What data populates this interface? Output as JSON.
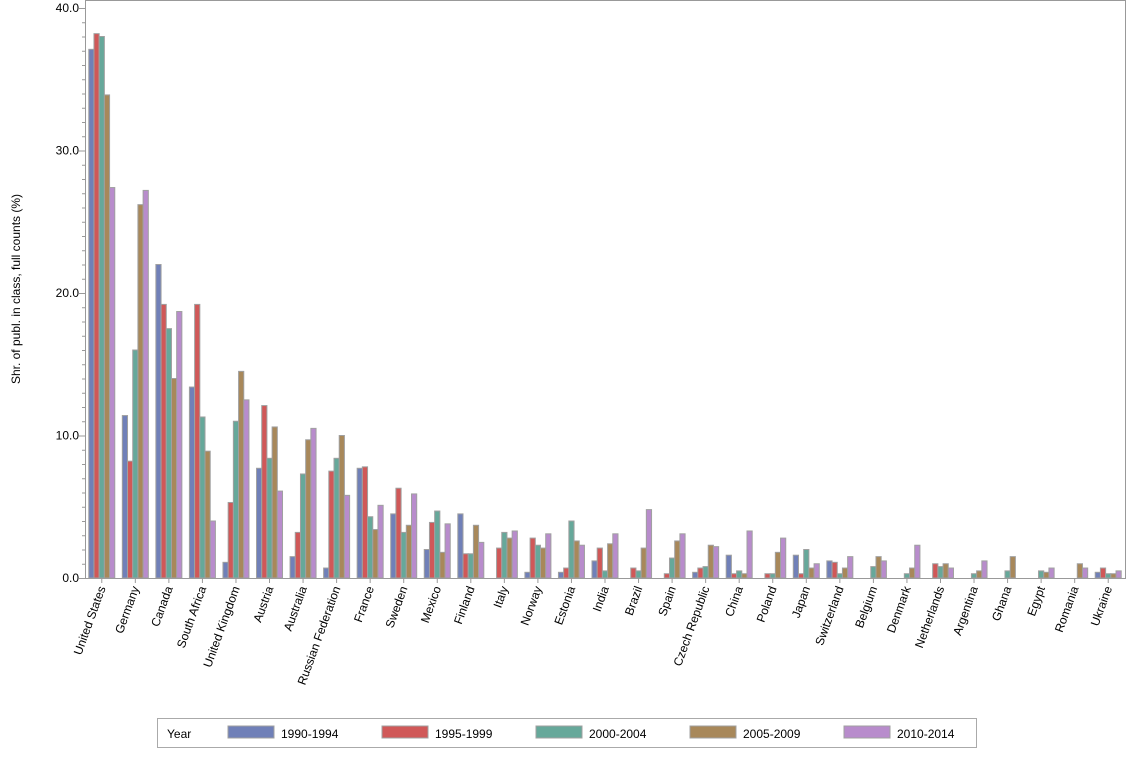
{
  "chart_data": {
    "type": "bar",
    "title": "",
    "xlabel": "",
    "ylabel": "Shr. of publ. in class, full counts (%)",
    "ylim": [
      0,
      40
    ],
    "yticks": [
      "0.0",
      "10.0",
      "20.0",
      "30.0",
      "40.0"
    ],
    "legend_title": "Year",
    "legend_position": "bottom",
    "categories": [
      "United States",
      "Germany",
      "Canada",
      "South Africa",
      "United Kingdom",
      "Austria",
      "Australia",
      "Russian Federation",
      "France",
      "Sweden",
      "Mexico",
      "Finland",
      "Italy",
      "Norway",
      "Estonia",
      "India",
      "Brazil",
      "Spain",
      "Czech Republic",
      "China",
      "Poland",
      "Japan",
      "Switzerland",
      "Belgium",
      "Denmark",
      "Netherlands",
      "Argentina",
      "Ghana",
      "Egypt",
      "Romania",
      "Ukraine"
    ],
    "series": [
      {
        "name": "1990-1994",
        "color": "#7080b8",
        "values": [
          37.1,
          11.4,
          22.0,
          13.4,
          1.1,
          7.7,
          1.5,
          0.7,
          7.7,
          4.5,
          2.0,
          4.5,
          0,
          0.4,
          0.4,
          1.2,
          0,
          0,
          0.4,
          1.6,
          0,
          1.6,
          1.2,
          0,
          0,
          0,
          0,
          0,
          0,
          0,
          0.4
        ]
      },
      {
        "name": "1995-1999",
        "color": "#d05858",
        "values": [
          38.2,
          8.2,
          19.2,
          19.2,
          5.3,
          12.1,
          3.2,
          7.5,
          7.8,
          6.3,
          3.9,
          1.7,
          2.1,
          2.8,
          0.7,
          2.1,
          0.7,
          0.3,
          0.7,
          0.3,
          0.3,
          0.3,
          1.1,
          0,
          0,
          1.0,
          0,
          0,
          0,
          0,
          0.7
        ]
      },
      {
        "name": "2000-2004",
        "color": "#66a89a",
        "values": [
          38.0,
          16.0,
          17.5,
          11.3,
          11.0,
          8.4,
          7.3,
          8.4,
          4.3,
          3.2,
          4.7,
          1.7,
          3.2,
          2.3,
          4.0,
          0.5,
          0.5,
          1.4,
          0.8,
          0.5,
          0.3,
          2.0,
          0.3,
          0.8,
          0.3,
          0.8,
          0.3,
          0.5,
          0.5,
          0,
          0.3
        ]
      },
      {
        "name": "2005-2009",
        "color": "#a8885a",
        "values": [
          33.9,
          26.2,
          14.0,
          8.9,
          14.5,
          10.6,
          9.7,
          10.0,
          3.4,
          3.7,
          1.8,
          3.7,
          2.8,
          2.1,
          2.6,
          2.4,
          2.1,
          2.6,
          2.3,
          0.3,
          1.8,
          0.7,
          0.7,
          1.5,
          0.7,
          1.0,
          0.5,
          1.5,
          0.4,
          1.0,
          0.3
        ]
      },
      {
        "name": "2010-2014",
        "color": "#b88ccc",
        "values": [
          27.4,
          27.2,
          18.7,
          4.0,
          12.5,
          6.1,
          10.5,
          5.8,
          5.1,
          5.9,
          3.8,
          2.5,
          3.3,
          3.1,
          2.3,
          3.1,
          4.8,
          3.1,
          2.2,
          3.3,
          2.8,
          1.0,
          1.5,
          1.2,
          2.3,
          0.7,
          1.2,
          0,
          0.7,
          0.7,
          0.5
        ]
      }
    ]
  }
}
